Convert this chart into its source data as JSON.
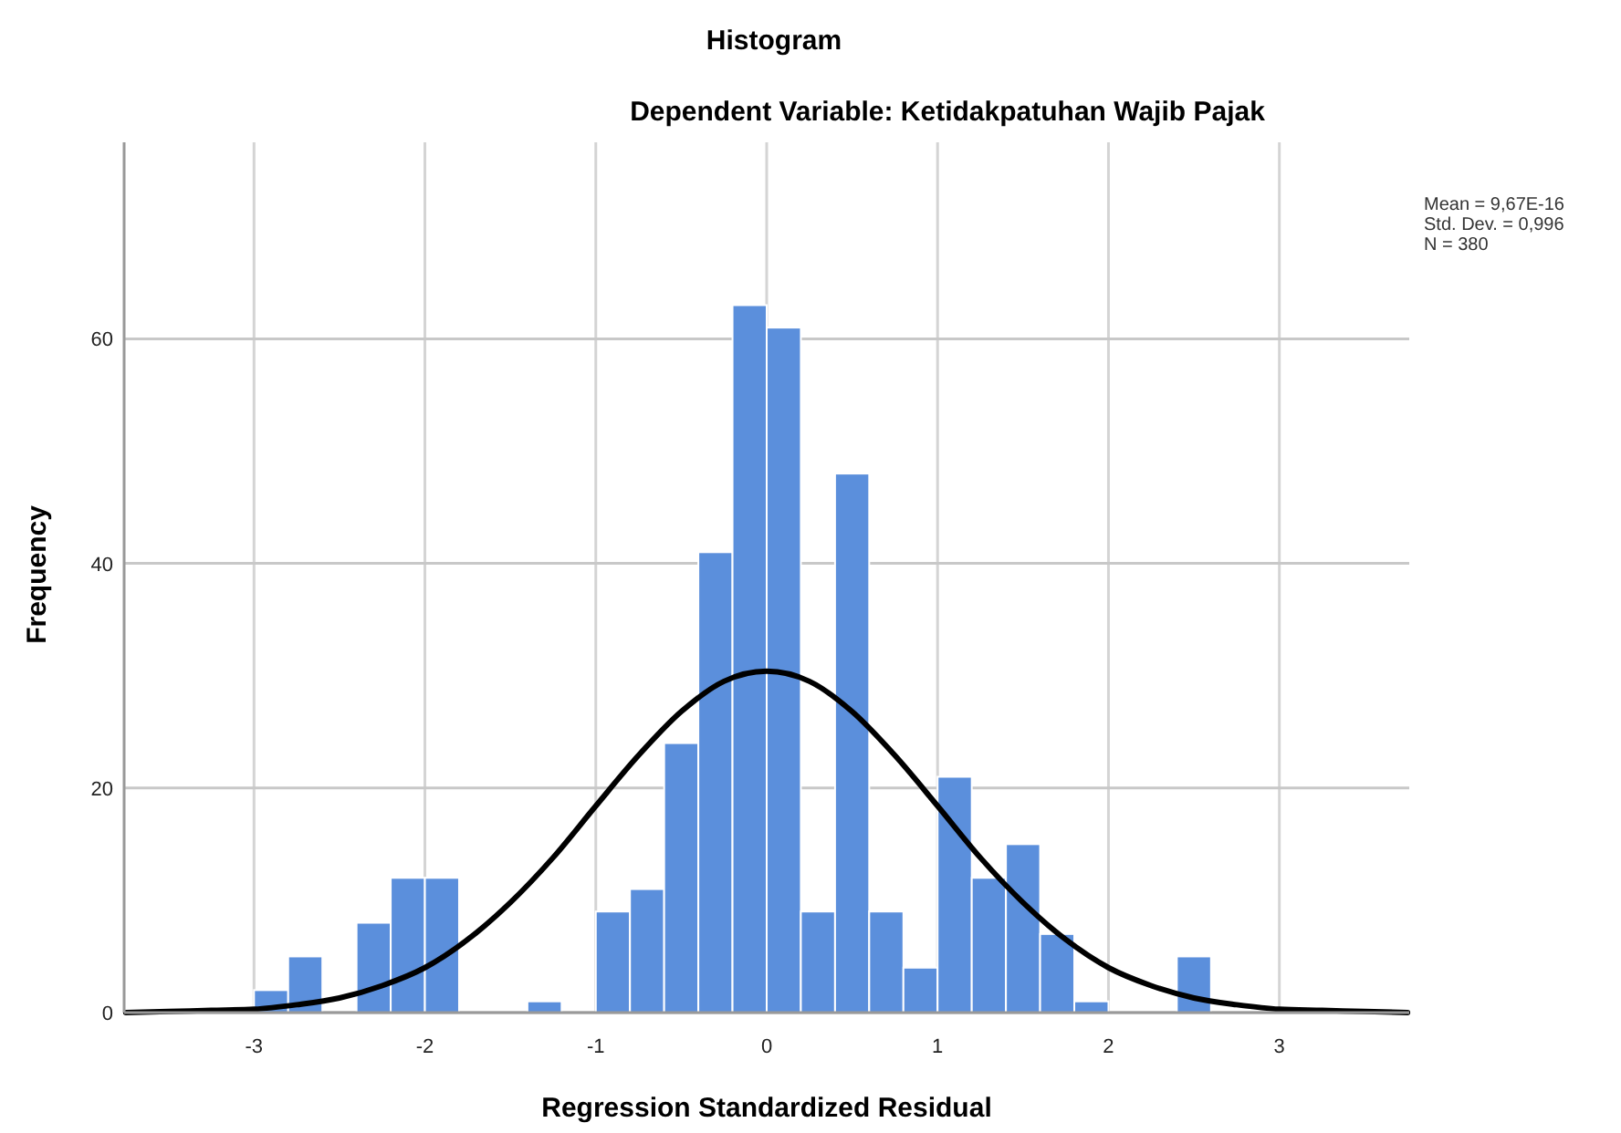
{
  "chart_data": {
    "type": "histogram",
    "title": "Histogram",
    "subtitle": "Dependent Variable: Ketidakpatuhan Wajib Pajak",
    "xlabel": "Regression Standardized Residual",
    "ylabel": "Frequency",
    "annotations": [
      "Mean = 9,67E-16",
      "Std. Dev. = 0,996",
      "N = 380"
    ],
    "xlim": [
      -3.76,
      3.76
    ],
    "xticks": [
      -3,
      -2,
      -1,
      0,
      1,
      2,
      3
    ],
    "ylim": [
      0,
      77.5
    ],
    "yticks": [
      0,
      20,
      40,
      60
    ],
    "grid": true,
    "series": [
      {
        "color": "#5b8fdc",
        "bins": [
          -3,
          -2.8,
          -2.6,
          -2.4,
          -2.2,
          -2,
          -1.8,
          -1.6,
          -1.4,
          -1.2,
          -1,
          -0.8,
          -0.6,
          -0.4,
          -0.2,
          0,
          0.2,
          0.4,
          0.6,
          0.8,
          1,
          1.2,
          1.4,
          1.6,
          1.8,
          2,
          2.2,
          2.4,
          2.6
        ],
        "values": [
          2,
          5,
          0,
          8,
          12,
          12,
          0,
          0,
          1,
          0,
          9,
          11,
          24,
          41,
          63,
          61,
          9,
          48,
          9,
          4,
          21,
          12,
          15,
          7,
          1,
          0,
          0,
          5
        ]
      },
      {
        "type": "line",
        "color": "#000000",
        "x": [
          -3.75,
          -3.5,
          -3.25,
          -3,
          -2.75,
          -2.5,
          -2.25,
          -2,
          -1.75,
          -1.5,
          -1.25,
          -1,
          -0.75,
          -0.5,
          -0.25,
          0,
          0.25,
          0.5,
          0.75,
          1,
          1.25,
          1.5,
          1.75,
          2,
          2.25,
          2.5,
          2.75,
          3,
          3.25,
          3.5,
          3.75
        ],
        "values": [
          0,
          0.1,
          0.2,
          0.3,
          0.7,
          1.3,
          2.4,
          4,
          6.5,
          9.8,
          13.8,
          18.4,
          22.9,
          26.8,
          29.5,
          30.4,
          29.5,
          26.8,
          22.9,
          18.4,
          13.8,
          9.8,
          6.5,
          4,
          2.4,
          1.3,
          0.7,
          0.3,
          0.2,
          0.1,
          0
        ]
      }
    ]
  }
}
